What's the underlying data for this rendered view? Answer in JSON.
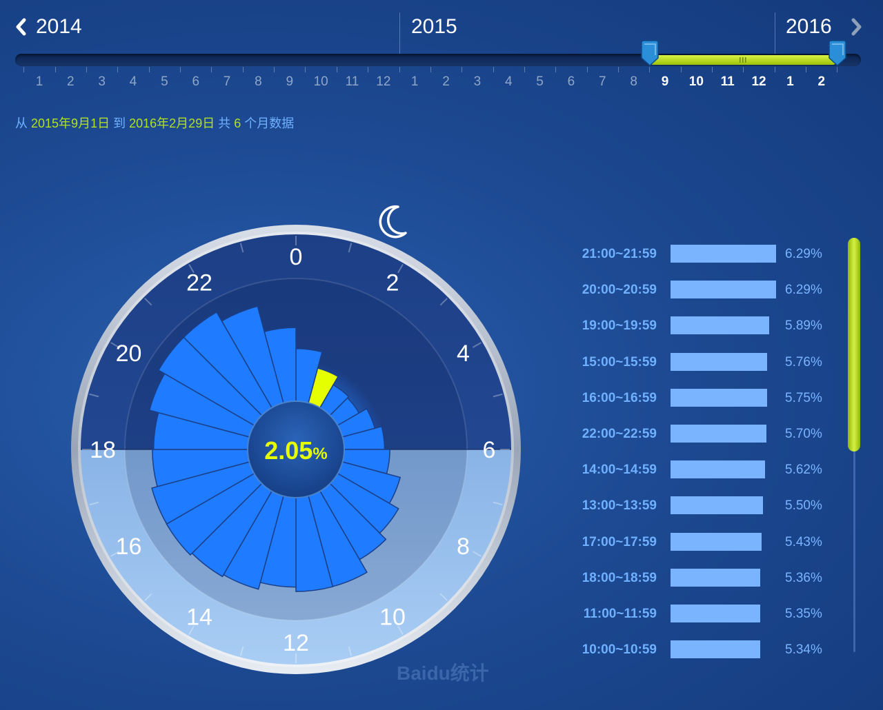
{
  "timeline": {
    "years": [
      "2014",
      "2015",
      "2016"
    ],
    "months": [
      "1",
      "2",
      "3",
      "4",
      "5",
      "6",
      "7",
      "8",
      "9",
      "10",
      "11",
      "12",
      "1",
      "2",
      "3",
      "4",
      "5",
      "6",
      "7",
      "8",
      "9",
      "10",
      "11",
      "12",
      "1",
      "2"
    ],
    "selected_start_index": 20,
    "selected_end_index": 25
  },
  "range_text": {
    "prefix": "从",
    "start": "2015年9月1日",
    "to": "到",
    "end": "2016年2月29日",
    "total": "共",
    "count": "6",
    "suffix": "个月数据"
  },
  "clock": {
    "center_value": "2.05",
    "center_unit": "%",
    "hour_labels": [
      "0",
      "2",
      "4",
      "6",
      "8",
      "10",
      "12",
      "14",
      "16",
      "18",
      "20",
      "22"
    ],
    "highlight_color": "#e6ff00",
    "bar_color": "#1f7bff"
  },
  "chart_data": {
    "type": "bar",
    "subtype": "polar",
    "categories": [
      "0",
      "1",
      "2",
      "3",
      "4",
      "5",
      "6",
      "7",
      "8",
      "9",
      "10",
      "11",
      "12",
      "13",
      "14",
      "15",
      "16",
      "17",
      "18",
      "19",
      "20",
      "21",
      "22",
      "23"
    ],
    "values": [
      3.0,
      2.05,
      1.5,
      1.4,
      1.9,
      2.3,
      2.6,
      3.4,
      4.0,
      4.5,
      5.34,
      5.35,
      5.1,
      5.5,
      5.62,
      5.76,
      5.75,
      5.43,
      5.36,
      5.89,
      6.29,
      6.29,
      5.7,
      4.2
    ],
    "highlight_category": "1",
    "unit": "%"
  },
  "ranking": [
    {
      "label": "21:00~21:59",
      "value": 6.29,
      "text": "6.29%"
    },
    {
      "label": "20:00~20:59",
      "value": 6.29,
      "text": "6.29%"
    },
    {
      "label": "19:00~19:59",
      "value": 5.89,
      "text": "5.89%"
    },
    {
      "label": "15:00~15:59",
      "value": 5.76,
      "text": "5.76%"
    },
    {
      "label": "16:00~16:59",
      "value": 5.75,
      "text": "5.75%"
    },
    {
      "label": "22:00~22:59",
      "value": 5.7,
      "text": "5.70%"
    },
    {
      "label": "14:00~14:59",
      "value": 5.62,
      "text": "5.62%"
    },
    {
      "label": "13:00~13:59",
      "value": 5.5,
      "text": "5.50%"
    },
    {
      "label": "17:00~17:59",
      "value": 5.43,
      "text": "5.43%"
    },
    {
      "label": "18:00~18:59",
      "value": 5.36,
      "text": "5.36%"
    },
    {
      "label": "11:00~11:59",
      "value": 5.35,
      "text": "5.35%"
    },
    {
      "label": "10:00~10:59",
      "value": 5.34,
      "text": "5.34%"
    }
  ],
  "ranking_max": 6.29,
  "watermark": "Baidu统计",
  "colors": {
    "accent_green": "#b2e21d",
    "text_blue": "#6fb0ff",
    "bar_light": "#7ab4ff"
  }
}
